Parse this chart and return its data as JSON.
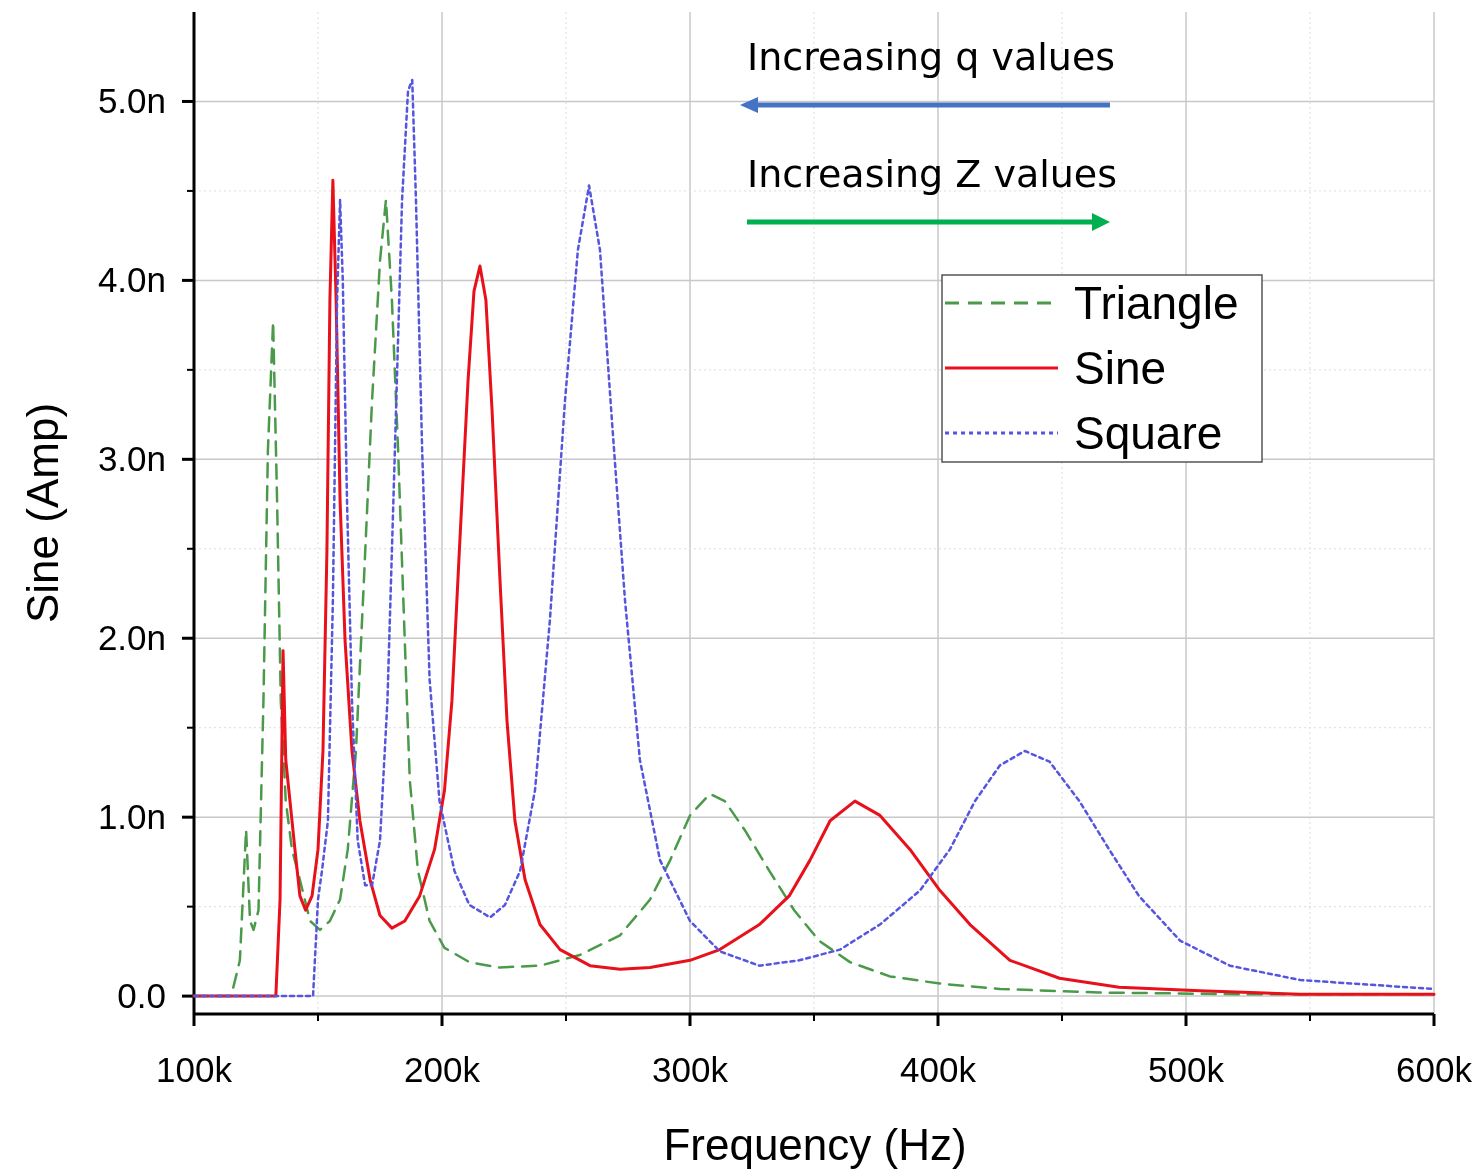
{
  "chart_data": {
    "type": "line",
    "xlabel": "Frequency (Hz)",
    "ylabel": "Sine (Amp)",
    "annotations": [
      "Increasing q values",
      "Increasing Z values"
    ],
    "xlim": [
      100000,
      600000
    ],
    "ylim": [
      -0.1,
      5.5
    ],
    "xticks": [
      {
        "value": 100000,
        "label": "100k"
      },
      {
        "value": 200000,
        "label": "200k"
      },
      {
        "value": 300000,
        "label": "300k"
      },
      {
        "value": 400000,
        "label": "400k"
      },
      {
        "value": 500000,
        "label": "500k"
      },
      {
        "value": 600000,
        "label": "600k"
      }
    ],
    "yticks": [
      {
        "value": 0,
        "label": "0.0"
      },
      {
        "value": 1,
        "label": "1.0n"
      },
      {
        "value": 2,
        "label": "2.0n"
      },
      {
        "value": 3,
        "label": "3.0n"
      },
      {
        "value": 4,
        "label": "4.0n"
      },
      {
        "value": 5,
        "label": "5.0n"
      }
    ],
    "grid": true,
    "legend": "top right",
    "series": [
      {
        "name": "Triangle",
        "color": "#4a9a4a",
        "line_style": "dashed",
        "x": [
          100000,
          115000,
          118500,
          121000,
          122600,
          124000,
          126000,
          128000,
          129800,
          131900,
          133500,
          135000,
          137000,
          139500,
          142700,
          146800,
          150800,
          154800,
          158900,
          162000,
          165300,
          168500,
          171800,
          175000,
          177400,
          179800,
          182300,
          184700,
          187000,
          190300,
          195000,
          201000,
          211000,
          223000,
          239500,
          255600,
          271800,
          283900,
          292000,
          300000,
          308000,
          314000,
          322000,
          332000,
          342000,
          352000,
          364500,
          380600,
          400800,
          425000,
          465000,
          525800,
          600000
        ],
        "values": [
          0,
          0,
          0.2,
          0.93,
          0.42,
          0.37,
          0.48,
          1.65,
          3.05,
          3.77,
          2.77,
          1.65,
          1.09,
          0.82,
          0.65,
          0.42,
          0.37,
          0.42,
          0.54,
          0.82,
          1.37,
          2.32,
          3.33,
          4.11,
          4.45,
          3.89,
          3.05,
          2.1,
          1.21,
          0.7,
          0.42,
          0.27,
          0.19,
          0.16,
          0.17,
          0.23,
          0.34,
          0.54,
          0.76,
          1.01,
          1.13,
          1.09,
          0.93,
          0.7,
          0.48,
          0.31,
          0.19,
          0.11,
          0.07,
          0.04,
          0.02,
          0.01,
          0.01
        ]
      },
      {
        "name": "Sine",
        "color": "#e8101a",
        "line_style": "solid",
        "x": [
          100000,
          130600,
          133000,
          134700,
          135900,
          137000,
          138700,
          140700,
          142700,
          145000,
          147600,
          150000,
          152000,
          153600,
          154800,
          156000,
          157300,
          158900,
          160900,
          163700,
          166900,
          171000,
          175000,
          179800,
          185000,
          191000,
          197000,
          201000,
          204000,
          207000,
          210500,
          212900,
          215300,
          217700,
          220200,
          223400,
          226200,
          229400,
          233500,
          239500,
          247600,
          259700,
          271800,
          283900,
          300000,
          312000,
          328000,
          340000,
          348400,
          356500,
          366500,
          376600,
          388700,
          400800,
          412900,
          429000,
          449000,
          473000,
          505600,
          546000,
          600000
        ],
        "values": [
          0,
          0,
          0,
          0.54,
          1.93,
          1.32,
          1.09,
          0.82,
          0.56,
          0.48,
          0.56,
          0.82,
          1.37,
          2.49,
          3.89,
          4.56,
          3.89,
          2.77,
          1.99,
          1.37,
          0.98,
          0.65,
          0.45,
          0.38,
          0.42,
          0.56,
          0.82,
          1.15,
          1.65,
          2.49,
          3.44,
          3.94,
          4.08,
          3.89,
          3.27,
          2.32,
          1.54,
          0.98,
          0.65,
          0.4,
          0.26,
          0.17,
          0.15,
          0.16,
          0.2,
          0.26,
          0.4,
          0.56,
          0.76,
          0.98,
          1.09,
          1.01,
          0.82,
          0.59,
          0.4,
          0.2,
          0.1,
          0.05,
          0.03,
          0.01,
          0.01
        ]
      },
      {
        "name": "Square",
        "color": "#5555e0",
        "line_style": "dotted",
        "x": [
          100000,
          148000,
          150000,
          151600,
          154000,
          156000,
          157700,
          158900,
          160000,
          161700,
          163700,
          166000,
          169000,
          171800,
          175000,
          178000,
          181000,
          183900,
          186300,
          188000,
          189500,
          192000,
          195000,
          199000,
          205000,
          211000,
          219400,
          225400,
          231500,
          237500,
          243500,
          249600,
          254800,
          259300,
          263700,
          268500,
          273800,
          279800,
          287900,
          300000,
          312000,
          328000,
          344000,
          360500,
          376600,
          392700,
          404800,
          414900,
          425000,
          435000,
          445000,
          457000,
          469000,
          481000,
          497600,
          517700,
          546000,
          578000,
          600000
        ],
        "values": [
          0,
          0,
          0.54,
          0.7,
          0.98,
          2.21,
          3.89,
          4.45,
          4.0,
          2.77,
          1.65,
          0.87,
          0.62,
          0.62,
          0.87,
          1.65,
          3.05,
          4.45,
          5.06,
          5.12,
          4.45,
          3.05,
          1.77,
          1.09,
          0.7,
          0.51,
          0.44,
          0.51,
          0.7,
          1.15,
          2.1,
          3.33,
          4.17,
          4.53,
          4.17,
          3.22,
          2.21,
          1.32,
          0.76,
          0.42,
          0.25,
          0.17,
          0.2,
          0.26,
          0.4,
          0.59,
          0.82,
          1.09,
          1.29,
          1.37,
          1.31,
          1.09,
          0.82,
          0.56,
          0.31,
          0.17,
          0.09,
          0.06,
          0.04
        ]
      }
    ]
  }
}
